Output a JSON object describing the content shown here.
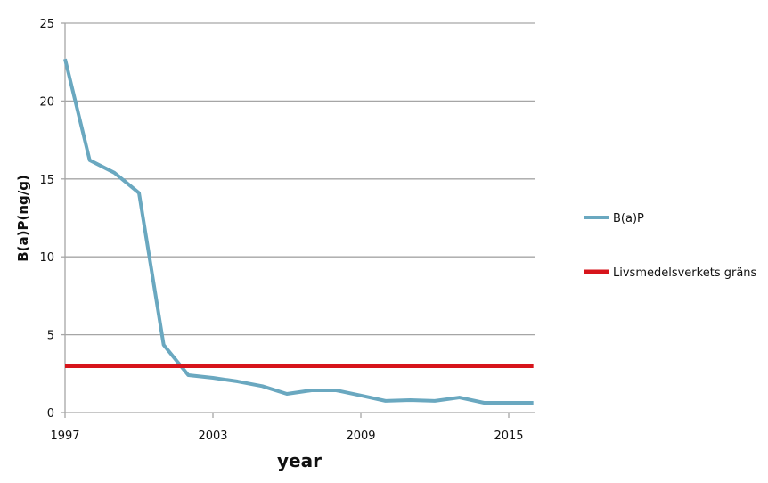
{
  "chart_data": {
    "type": "line",
    "xlabel": "year",
    "ylabel": "B(a)P(ng/g)",
    "xlim": [
      1997,
      2016
    ],
    "ylim": [
      0,
      25
    ],
    "x_ticks": [
      "1997",
      "2003",
      "2009",
      "2015"
    ],
    "y_ticks": [
      "0",
      "5",
      "10",
      "15",
      "20",
      "25"
    ],
    "grid": "horizontal",
    "legend": "right",
    "x": [
      1997,
      1998,
      1999,
      2000,
      2001,
      2002,
      2003,
      2004,
      2005,
      2006,
      2007,
      2008,
      2009,
      2010,
      2011,
      2012,
      2013,
      2014,
      2015,
      2016
    ],
    "series": [
      {
        "name": "B(a)P",
        "color": "#6aa8c0",
        "values": [
          22.7,
          16.2,
          15.4,
          14.1,
          4.35,
          2.4,
          2.23,
          2.0,
          1.7,
          1.2,
          1.43,
          1.43,
          1.1,
          0.75,
          0.8,
          0.75,
          0.97,
          0.63,
          0.63,
          0.63
        ]
      },
      {
        "name": "Livsmedelsverkets gräns",
        "color": "#d7141b",
        "values": [
          3,
          3,
          3,
          3,
          3,
          3,
          3,
          3,
          3,
          3,
          3,
          3,
          3,
          3,
          3,
          3,
          3,
          3,
          3,
          3
        ]
      }
    ]
  }
}
